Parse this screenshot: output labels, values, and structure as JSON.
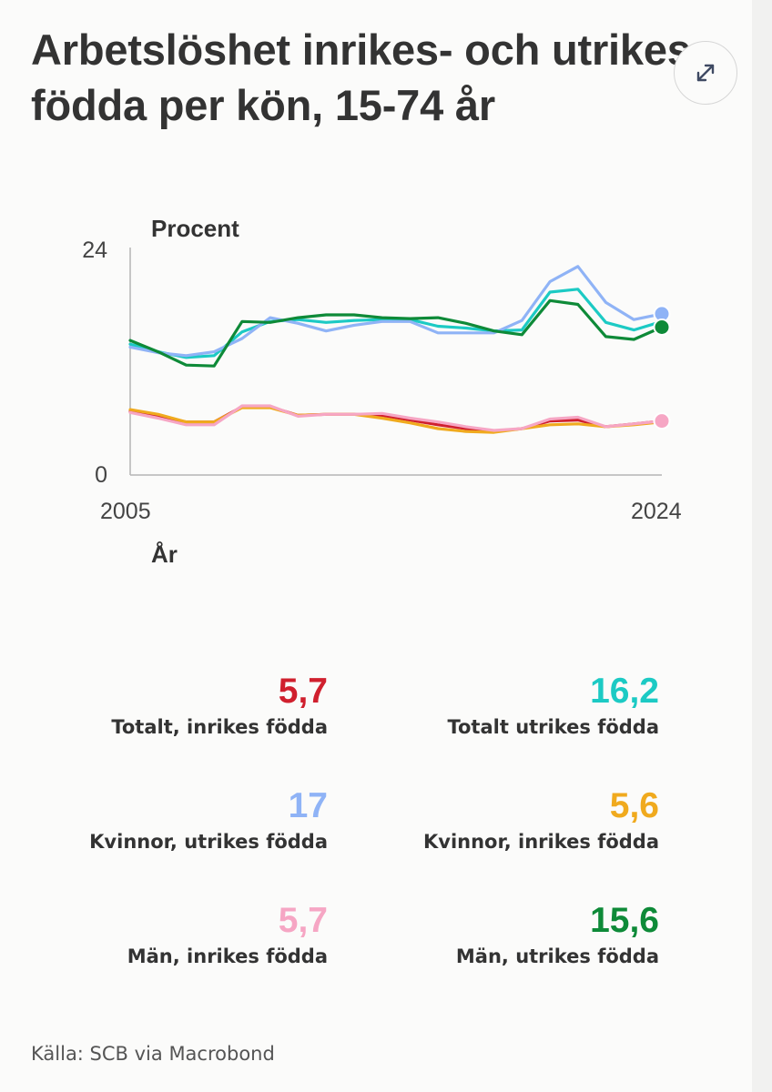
{
  "title": "Arbetslöshet inrikes- och utrikes födda per kön, 15-74 år",
  "expand_button": {
    "icon": "expand-arrows-icon"
  },
  "chart_data": {
    "type": "line",
    "ylabel": "Procent",
    "xlabel": "År",
    "ylim": [
      0,
      24
    ],
    "xlim": [
      2005,
      2024
    ],
    "y_ticks": [
      "0",
      "24"
    ],
    "x_ticks": [
      "2005",
      "2024"
    ],
    "x": [
      2005,
      2006,
      2007,
      2008,
      2009,
      2010,
      2011,
      2012,
      2013,
      2014,
      2015,
      2016,
      2017,
      2018,
      2019,
      2020,
      2021,
      2022,
      2023,
      2024
    ],
    "series": [
      {
        "name": "Totalt, inrikes födda",
        "color": "#d0202e",
        "end_dot": false,
        "values": [
          6.7,
          6.2,
          5.6,
          5.6,
          7.2,
          7.2,
          6.3,
          6.4,
          6.4,
          6.3,
          5.8,
          5.3,
          4.9,
          4.6,
          4.9,
          5.7,
          5.8,
          5.1,
          5.4,
          5.7
        ]
      },
      {
        "name": "Totalt utrikes födda",
        "color": "#1ccac4",
        "end_dot": false,
        "values": [
          13.8,
          13.0,
          12.4,
          12.6,
          15.1,
          16.2,
          16.4,
          16.1,
          16.3,
          16.4,
          16.4,
          15.7,
          15.5,
          15.2,
          15.3,
          19.3,
          19.6,
          16.1,
          15.3,
          16.2
        ]
      },
      {
        "name": "Kvinnor, utrikes födda",
        "color": "#8fb3f6",
        "end_dot": true,
        "values": [
          13.5,
          12.9,
          12.6,
          13.0,
          14.4,
          16.6,
          16.0,
          15.2,
          15.8,
          16.2,
          16.2,
          15.0,
          15.0,
          15.0,
          16.3,
          20.4,
          22.0,
          18.2,
          16.4,
          17.0
        ]
      },
      {
        "name": "Kvinnor, inrikes födda",
        "color": "#f0aa1e",
        "end_dot": false,
        "values": [
          6.9,
          6.4,
          5.6,
          5.6,
          7.1,
          7.1,
          6.3,
          6.4,
          6.4,
          6.0,
          5.5,
          4.9,
          4.6,
          4.5,
          4.9,
          5.3,
          5.4,
          5.1,
          5.3,
          5.6
        ]
      },
      {
        "name": "Män, inrikes födda",
        "color": "#f6a6c4",
        "end_dot": true,
        "values": [
          6.6,
          6.0,
          5.3,
          5.3,
          7.3,
          7.3,
          6.2,
          6.4,
          6.4,
          6.5,
          6.0,
          5.6,
          5.1,
          4.7,
          4.9,
          5.9,
          6.1,
          5.1,
          5.4,
          5.7
        ]
      },
      {
        "name": "Män, utrikes födda",
        "color": "#0e8a38",
        "end_dot": true,
        "values": [
          14.2,
          13.0,
          11.6,
          11.5,
          16.2,
          16.1,
          16.6,
          16.9,
          16.9,
          16.6,
          16.5,
          16.6,
          16.0,
          15.2,
          14.8,
          18.4,
          18.0,
          14.6,
          14.3,
          15.6
        ]
      }
    ]
  },
  "stats": [
    {
      "value": "5,7",
      "label": "Totalt, inrikes födda",
      "color": "#d0202e"
    },
    {
      "value": "16,2",
      "label": "Totalt utrikes födda",
      "color": "#1ccac4"
    },
    {
      "value": "17",
      "label": "Kvinnor, utrikes födda",
      "color": "#8fb3f6"
    },
    {
      "value": "5,6",
      "label": "Kvinnor, inrikes födda",
      "color": "#f0aa1e"
    },
    {
      "value": "5,7",
      "label": "Män, inrikes födda",
      "color": "#f6a6c4"
    },
    {
      "value": "15,6",
      "label": "Män, utrikes födda",
      "color": "#0e8a38"
    }
  ],
  "source": "Källa: SCB via Macrobond"
}
